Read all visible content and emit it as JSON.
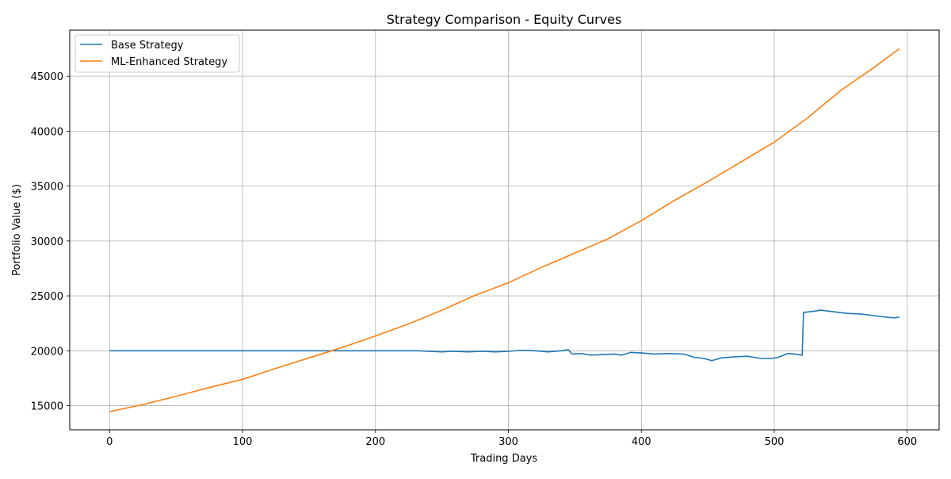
{
  "chart_data": {
    "type": "line",
    "title": "Strategy Comparison - Equity Curves",
    "xlabel": "Trading Days",
    "ylabel": "Portfolio Value ($)",
    "xlim": [
      -30,
      624
    ],
    "ylim": [
      12800,
      49200
    ],
    "xticks": [
      0,
      100,
      200,
      300,
      400,
      500,
      600
    ],
    "yticks": [
      15000,
      20000,
      25000,
      30000,
      35000,
      40000,
      45000
    ],
    "grid": true,
    "legend_position": "top-left",
    "series": [
      {
        "name": "Base Strategy",
        "color": "#1f77b4",
        "points": [
          [
            0,
            20000
          ],
          [
            50,
            20000
          ],
          [
            100,
            20000
          ],
          [
            150,
            20000
          ],
          [
            200,
            20000
          ],
          [
            232,
            20000
          ],
          [
            240,
            19950
          ],
          [
            250,
            19900
          ],
          [
            258,
            19950
          ],
          [
            270,
            19900
          ],
          [
            280,
            19950
          ],
          [
            290,
            19900
          ],
          [
            300,
            19950
          ],
          [
            310,
            20050
          ],
          [
            320,
            20000
          ],
          [
            330,
            19900
          ],
          [
            340,
            20000
          ],
          [
            345,
            20100
          ],
          [
            348,
            19700
          ],
          [
            355,
            19750
          ],
          [
            362,
            19600
          ],
          [
            370,
            19650
          ],
          [
            380,
            19700
          ],
          [
            385,
            19600
          ],
          [
            392,
            19850
          ],
          [
            400,
            19800
          ],
          [
            410,
            19700
          ],
          [
            420,
            19750
          ],
          [
            432,
            19700
          ],
          [
            440,
            19400
          ],
          [
            447,
            19300
          ],
          [
            453,
            19100
          ],
          [
            460,
            19350
          ],
          [
            470,
            19450
          ],
          [
            480,
            19500
          ],
          [
            490,
            19300
          ],
          [
            498,
            19300
          ],
          [
            503,
            19400
          ],
          [
            510,
            19750
          ],
          [
            515,
            19700
          ],
          [
            521,
            19600
          ],
          [
            522,
            23500
          ],
          [
            530,
            23600
          ],
          [
            535,
            23700
          ],
          [
            545,
            23550
          ],
          [
            555,
            23400
          ],
          [
            565,
            23350
          ],
          [
            575,
            23200
          ],
          [
            585,
            23050
          ],
          [
            590,
            23000
          ],
          [
            594,
            23050
          ]
        ]
      },
      {
        "name": "ML-Enhanced Strategy",
        "color": "#ff7f0e",
        "points": [
          [
            0,
            14450
          ],
          [
            25,
            15100
          ],
          [
            50,
            15850
          ],
          [
            75,
            16650
          ],
          [
            100,
            17400
          ],
          [
            125,
            18400
          ],
          [
            150,
            19350
          ],
          [
            175,
            20300
          ],
          [
            200,
            21350
          ],
          [
            225,
            22450
          ],
          [
            250,
            23700
          ],
          [
            275,
            25050
          ],
          [
            300,
            26200
          ],
          [
            325,
            27600
          ],
          [
            350,
            28900
          ],
          [
            375,
            30200
          ],
          [
            400,
            31850
          ],
          [
            425,
            33700
          ],
          [
            450,
            35400
          ],
          [
            475,
            37200
          ],
          [
            500,
            39000
          ],
          [
            525,
            41200
          ],
          [
            550,
            43700
          ],
          [
            575,
            45800
          ],
          [
            594,
            47500
          ]
        ]
      }
    ]
  }
}
